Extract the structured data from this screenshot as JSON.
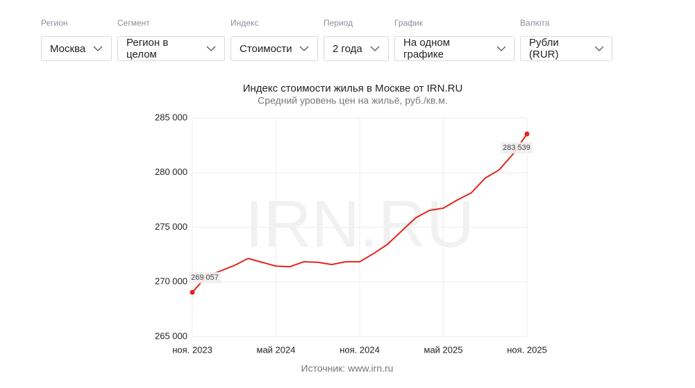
{
  "filters": [
    {
      "label": "Регион",
      "value": "Москва"
    },
    {
      "label": "Сегмент",
      "value": "Регион в целом"
    },
    {
      "label": "Индекс",
      "value": "Стоимости"
    },
    {
      "label": "Период",
      "value": "2 года"
    },
    {
      "label": "График",
      "value": "На одном графике"
    },
    {
      "label": "Валюта",
      "value": "Рубли (RUR)"
    }
  ],
  "chart_data": {
    "type": "line",
    "title": "Индекс стоимости жилья в Москве от IRN.RU",
    "subtitle": "Средний уровень цен на жильё, руб./кв.м.",
    "watermark": "IRN.RU",
    "source": "Источник: www.irn.ru",
    "categories": [
      "ноя. 2023",
      null,
      null,
      null,
      null,
      null,
      "май 2024",
      null,
      null,
      null,
      null,
      null,
      "ноя. 2024",
      null,
      null,
      null,
      null,
      null,
      "май 2025",
      null,
      null,
      null,
      null,
      null,
      "ноя. 2025"
    ],
    "series": [
      {
        "name": "Москва",
        "color": "#e3241b",
        "values": [
          269057,
          270500,
          271000,
          271500,
          272150,
          271800,
          271450,
          271400,
          271850,
          271800,
          271600,
          271850,
          271850,
          272600,
          273450,
          274650,
          275850,
          276550,
          276750,
          277500,
          278150,
          279500,
          280250,
          281700,
          283539
        ],
        "value_labels": [
          "269 057",
          null,
          null,
          null,
          null,
          null,
          null,
          null,
          null,
          null,
          null,
          null,
          null,
          null,
          null,
          null,
          null,
          null,
          null,
          null,
          null,
          null,
          null,
          null,
          "283 539"
        ]
      }
    ],
    "ylim": [
      265000,
      285000
    ],
    "yticks": [
      {
        "value": 265000,
        "label": "265 000"
      },
      {
        "value": 270000,
        "label": "270 000"
      },
      {
        "value": 275000,
        "label": "275 000"
      },
      {
        "value": 280000,
        "label": "280 000"
      },
      {
        "value": 285000,
        "label": "285 000"
      }
    ],
    "grid": true
  }
}
